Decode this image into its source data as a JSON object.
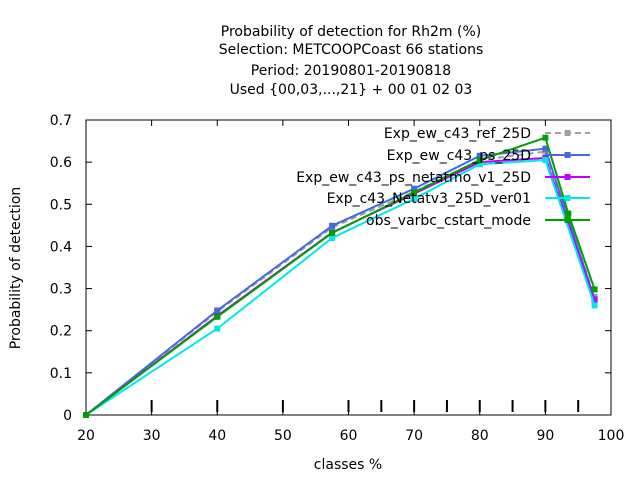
{
  "chart_data": {
    "type": "line",
    "title_lines": [
      "Probability of detection  for Rh2m (%)",
      "Selection: METCOOPCoast     66 stations",
      "Period: 20190801-20190818",
      "Used {00,03,...,21} + 00 01 02 03"
    ],
    "xlabel": "classes %",
    "ylabel": "Probability of detection",
    "xlim": [
      20,
      100
    ],
    "ylim": [
      0,
      0.7
    ],
    "x_ticks": [
      20,
      30,
      40,
      50,
      60,
      70,
      80,
      90,
      100
    ],
    "y_ticks": [
      0,
      0.1,
      0.2,
      0.3,
      0.4,
      0.5,
      0.6,
      0.7
    ],
    "x_minor_ticks": [
      30,
      40,
      50,
      60,
      65,
      70,
      75,
      80,
      85,
      90,
      95
    ],
    "grid": false,
    "legend_position": "top-right",
    "series": [
      {
        "name": "Exp_ew_c43_ref_25D",
        "color": "#a0a0a0",
        "dash": "dashed",
        "marker": "square",
        "x": [
          20,
          40,
          57.5,
          70,
          80,
          90,
          97.5
        ],
        "y": [
          0,
          0.245,
          0.445,
          0.53,
          0.605,
          0.625,
          0.28
        ]
      },
      {
        "name": "Exp_ew_c43_ps_25D",
        "color": "#4169e1",
        "dash": "solid",
        "marker": "square",
        "x": [
          20,
          40,
          57.5,
          70,
          80,
          90,
          97.5
        ],
        "y": [
          0,
          0.248,
          0.449,
          0.537,
          0.615,
          0.632,
          0.275
        ]
      },
      {
        "name": "Exp_ew_c43_ps_netatmo_v1_25D",
        "color": "#c000ff",
        "dash": "solid",
        "marker": "square",
        "x": [
          20,
          40,
          57.5,
          70,
          80,
          90,
          97.5
        ],
        "y": [
          0,
          0.235,
          0.433,
          0.525,
          0.6,
          0.61,
          0.272
        ]
      },
      {
        "name": "Exp_c43_Netatv3_25D_ver01",
        "color": "#00e8e8",
        "dash": "solid",
        "marker": "square",
        "x": [
          20,
          40,
          57.5,
          70,
          80,
          90,
          97.5
        ],
        "y": [
          0,
          0.205,
          0.42,
          0.513,
          0.595,
          0.605,
          0.26
        ]
      },
      {
        "name": "obs_varbc_cstart_mode",
        "color": "#00a000",
        "dash": "solid",
        "marker": "square",
        "x": [
          20,
          40,
          57.5,
          70,
          80,
          90,
          93.5,
          97.5
        ],
        "y": [
          0,
          0.233,
          0.432,
          0.528,
          0.605,
          0.658,
          0.478,
          0.298
        ]
      }
    ]
  }
}
